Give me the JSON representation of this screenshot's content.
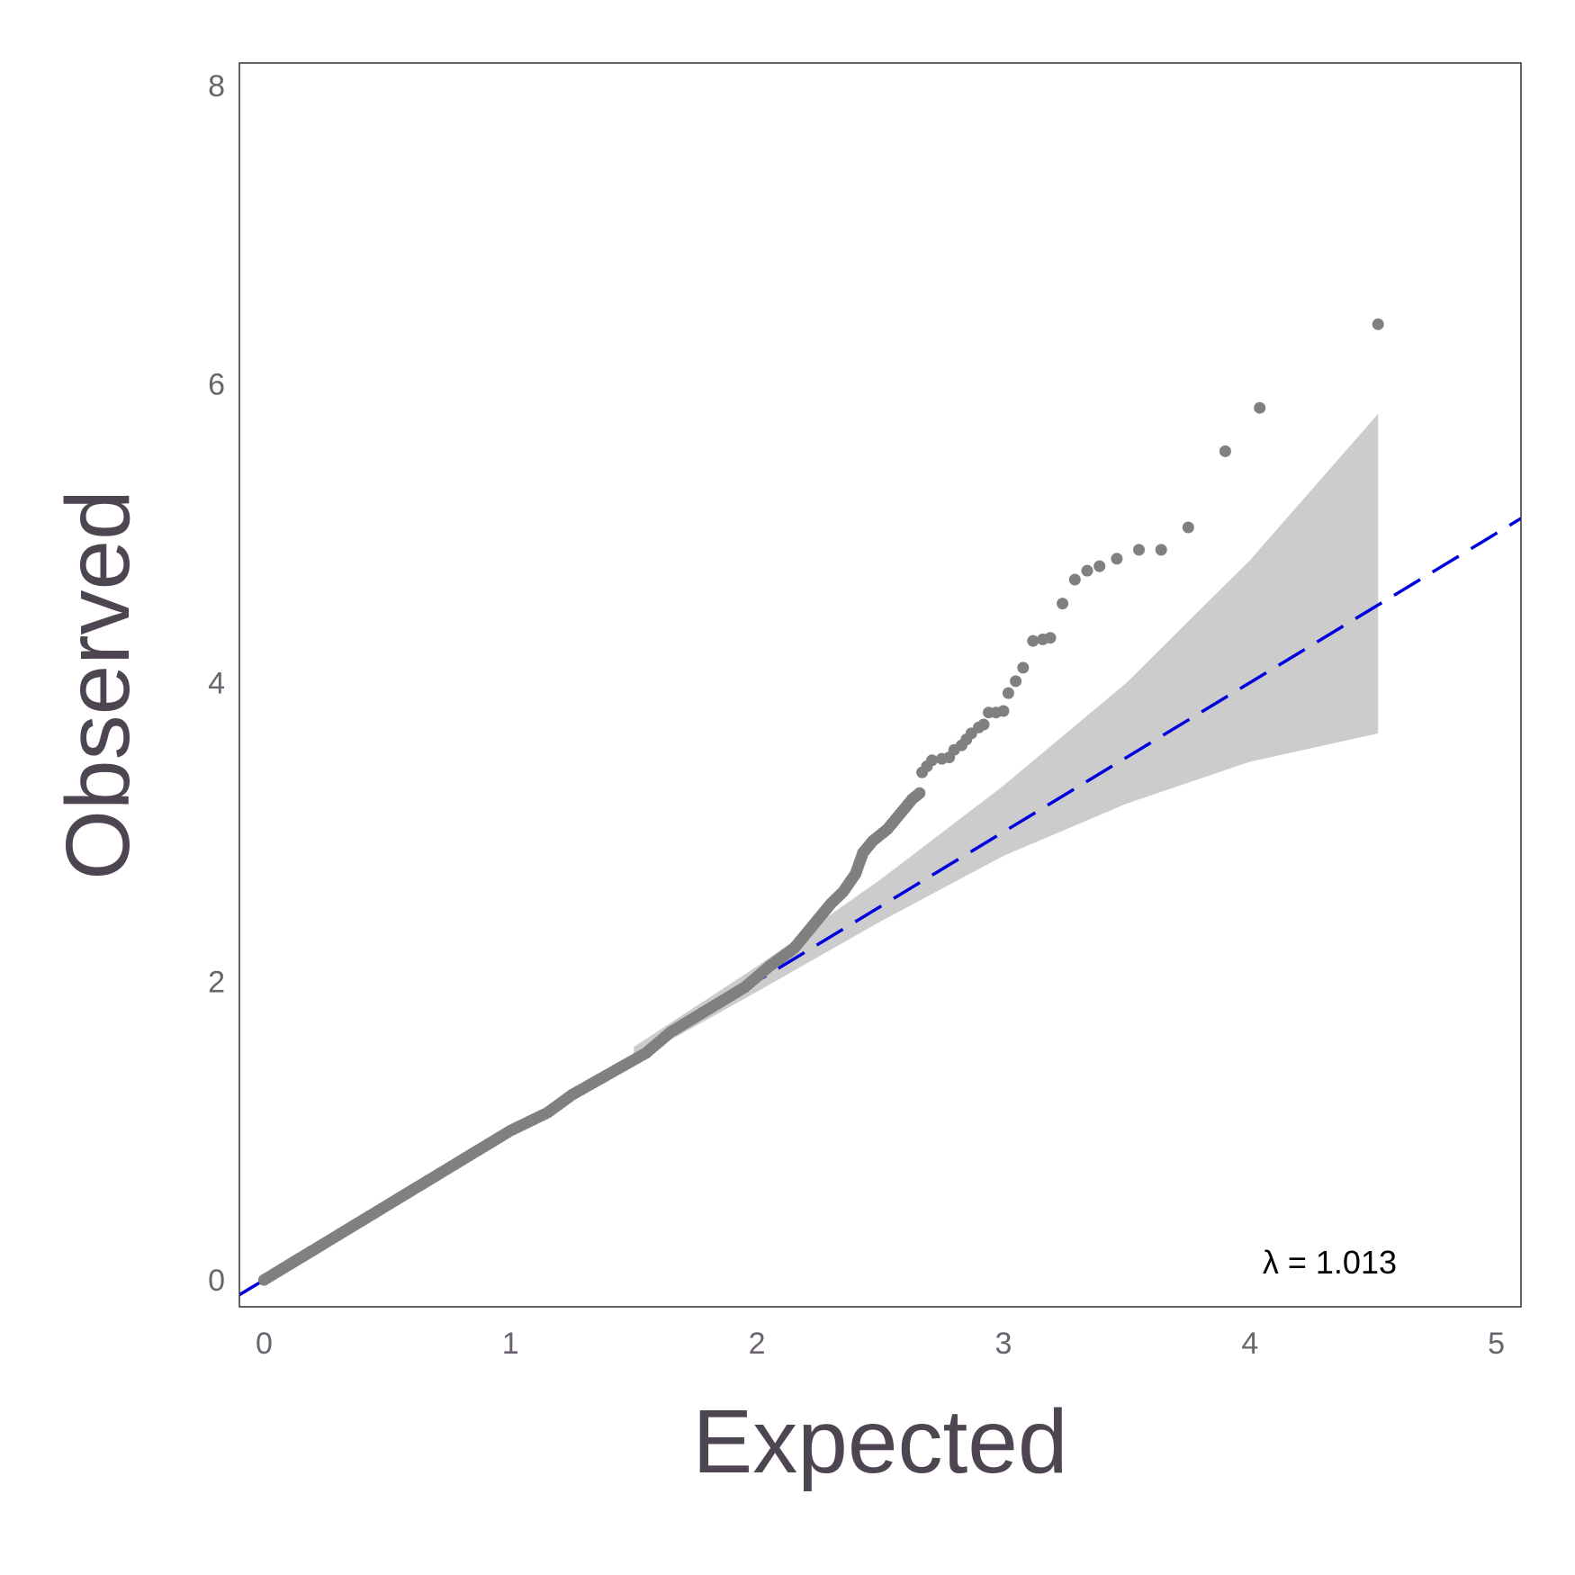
{
  "colors": {
    "points": "#808080",
    "reference_line": "#0000dd",
    "confidence_band": "#cccccc",
    "panel_border": "#333333",
    "tick_text": "#6b6470",
    "title_text": "#4d4550"
  },
  "chart_data": {
    "type": "scatter",
    "title": "",
    "xlabel": "Expected",
    "ylabel": "Observed",
    "xlim": [
      -0.1,
      5.1
    ],
    "ylim": [
      -0.18,
      8.15
    ],
    "x_ticks": [
      0,
      1,
      2,
      3,
      4,
      5
    ],
    "y_ticks": [
      0,
      2,
      4,
      6,
      8
    ],
    "grid": false,
    "annotation": "λ = 1.013",
    "reference_line": {
      "style": "dashed",
      "intercept": 0,
      "slope": 1,
      "x": [
        -0.1,
        5.1
      ],
      "y": [
        -0.1,
        5.1
      ]
    },
    "confidence_band": {
      "x": [
        1.5,
        2.0,
        2.5,
        3.0,
        3.5,
        4.0,
        4.52
      ],
      "lower": [
        1.47,
        1.93,
        2.4,
        2.84,
        3.19,
        3.47,
        3.66
      ],
      "upper": [
        1.56,
        2.1,
        2.68,
        3.31,
        4.0,
        4.82,
        5.8
      ]
    },
    "points": {
      "dense_curve": [
        [
          0.0,
          0.0
        ],
        [
          0.25,
          0.25
        ],
        [
          0.5,
          0.5
        ],
        [
          0.75,
          0.75
        ],
        [
          1.0,
          1.0
        ],
        [
          1.15,
          1.12
        ],
        [
          1.25,
          1.24
        ],
        [
          1.4,
          1.38
        ],
        [
          1.55,
          1.52
        ],
        [
          1.65,
          1.66
        ],
        [
          1.75,
          1.76
        ],
        [
          1.85,
          1.86
        ],
        [
          1.95,
          1.96
        ],
        [
          2.05,
          2.1
        ],
        [
          2.15,
          2.22
        ],
        [
          2.2,
          2.32
        ],
        [
          2.25,
          2.42
        ],
        [
          2.3,
          2.52
        ],
        [
          2.35,
          2.6
        ],
        [
          2.4,
          2.72
        ],
        [
          2.43,
          2.86
        ],
        [
          2.47,
          2.94
        ],
        [
          2.53,
          3.02
        ],
        [
          2.58,
          3.12
        ],
        [
          2.63,
          3.22
        ],
        [
          2.66,
          3.26
        ]
      ],
      "outliers": [
        [
          2.67,
          3.4
        ],
        [
          2.69,
          3.44
        ],
        [
          2.71,
          3.48
        ],
        [
          2.75,
          3.49
        ],
        [
          2.78,
          3.5
        ],
        [
          2.8,
          3.55
        ],
        [
          2.83,
          3.58
        ],
        [
          2.85,
          3.62
        ],
        [
          2.87,
          3.66
        ],
        [
          2.9,
          3.7
        ],
        [
          2.92,
          3.72
        ],
        [
          2.94,
          3.8
        ],
        [
          2.97,
          3.8
        ],
        [
          3.0,
          3.81
        ],
        [
          3.02,
          3.93
        ],
        [
          3.05,
          4.01
        ],
        [
          3.08,
          4.1
        ],
        [
          3.12,
          4.28
        ],
        [
          3.16,
          4.29
        ],
        [
          3.19,
          4.3
        ],
        [
          3.24,
          4.53
        ],
        [
          3.29,
          4.69
        ],
        [
          3.34,
          4.75
        ],
        [
          3.39,
          4.78
        ],
        [
          3.46,
          4.83
        ],
        [
          3.55,
          4.89
        ],
        [
          3.64,
          4.89
        ],
        [
          3.75,
          5.04
        ],
        [
          3.9,
          5.55
        ],
        [
          4.04,
          5.84
        ],
        [
          4.52,
          6.4
        ]
      ]
    }
  }
}
